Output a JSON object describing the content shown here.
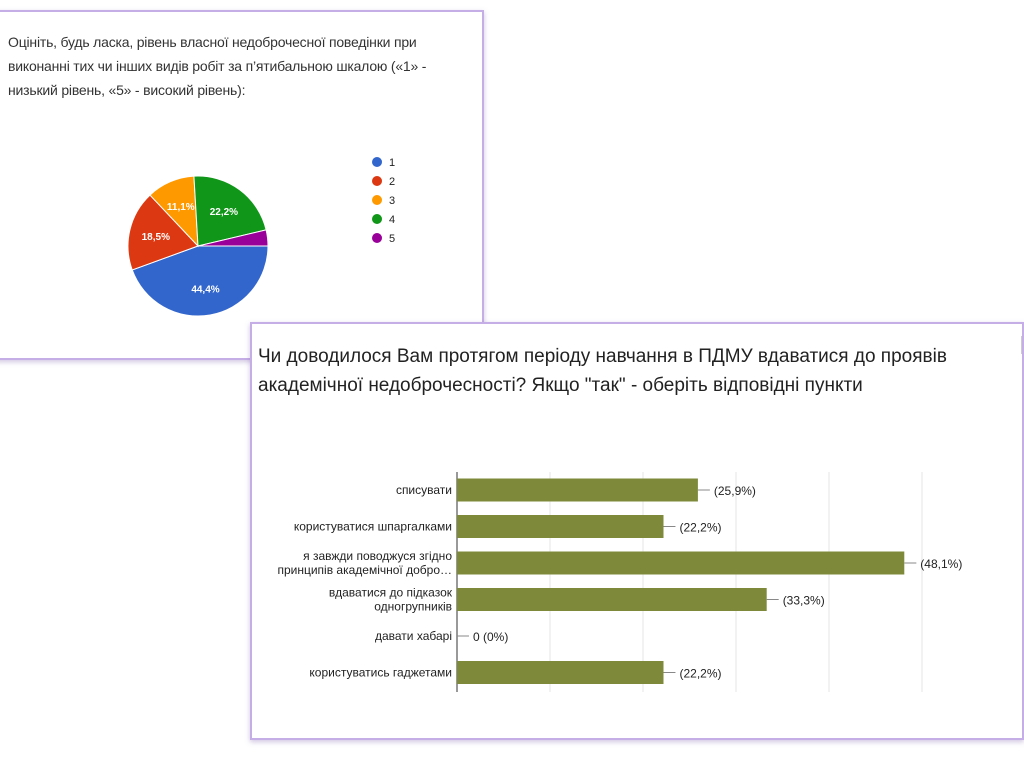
{
  "charts": {
    "pie": {
      "question": "Оцініть, будь ласка, рівень власної недоброчесної поведінки при виконанні тих чи інших видів робіт за п’ятибальною шкалою («1» - низький рівень, «5» - високий рівень):"
    },
    "bar": {
      "question": "Чи доводилося Вам протягом періоду навчання в ПДМУ вдаватися до проявів академічної недоброчесності? Якщо \"так\" - оберіть відповідні пункти"
    }
  },
  "chart_data": [
    {
      "type": "pie",
      "title": "Оцініть, будь ласка, рівень власної недоброчесної поведінки при виконанні тих чи інших видів робіт за п’ятибальною шкалою («1» - низький рівень, «5» - високий рівень):",
      "categories": [
        "1",
        "2",
        "3",
        "4",
        "5"
      ],
      "values": [
        44.4,
        18.5,
        11.1,
        22.2,
        3.7
      ],
      "labels": [
        "44,4%",
        "18,5%",
        "11,1%",
        "22,2%",
        ""
      ],
      "colors": [
        "#3366cc",
        "#dc3912",
        "#ff9900",
        "#109618",
        "#990099"
      ],
      "legend": "right"
    },
    {
      "type": "bar",
      "orientation": "horizontal",
      "title": "Чи доводилося Вам протягом періоду навчання в ПДМУ вдаватися до проявів академічної недоброчесності? Якщо \"так\" - оберіть відповідні пункти",
      "categories": [
        [
          "списувати"
        ],
        [
          "користуватися шпаргалками"
        ],
        [
          "я завжди поводжуся згідно",
          "принципів академічної доброчесності"
        ],
        [
          "вдаватися до підказок",
          "одногрупників"
        ],
        [
          "давати хабарі"
        ],
        [
          "користуватись гаджетами"
        ]
      ],
      "values": [
        25.9,
        22.2,
        48.1,
        33.3,
        0,
        22.2
      ],
      "labels": [
        "(25,9%)",
        "(22,2%)",
        "(48,1%)",
        "(33,3%)",
        "0 (0%)",
        "(22,2%)"
      ],
      "color": "#7e8a3a",
      "xlim": [
        0,
        50
      ],
      "grid": true
    }
  ]
}
